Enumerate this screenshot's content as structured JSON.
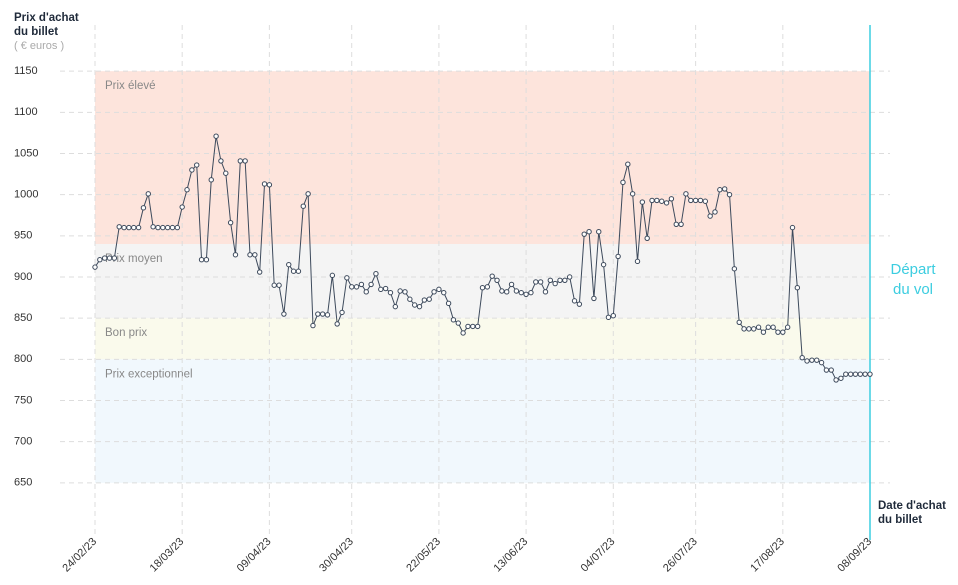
{
  "chart_data": {
    "type": "line",
    "y_axis_title": "Prix d'achat du billet",
    "y_axis_unit": "( € euros )",
    "x_axis_title": "Date d'achat du billet",
    "annotation": [
      "Départ",
      "du vol"
    ],
    "line_color": "#3d4a5c",
    "annotation_color": "#3ccde0",
    "grid": true,
    "bands": [
      {
        "label": "Prix élevé",
        "from": 940,
        "to": 1150,
        "color": "#fde4dc"
      },
      {
        "label": "Prix moyen",
        "from": 850,
        "to": 940,
        "color": "#f4f4f4"
      },
      {
        "label": "Bon prix",
        "from": 800,
        "to": 850,
        "color": "#fafaec"
      },
      {
        "label": "Prix exceptionnel",
        "from": 650,
        "to": 800,
        "color": "#f1f8fd"
      }
    ],
    "values": [
      912,
      921,
      923,
      923,
      923,
      961,
      960,
      960,
      960,
      960,
      984,
      1001,
      961,
      960,
      960,
      960,
      960,
      960,
      985,
      1006,
      1030,
      1036,
      921,
      921,
      1018,
      1071,
      1041,
      1026,
      966,
      927,
      1041,
      1041,
      927,
      927,
      906,
      1013,
      1012,
      890,
      890,
      855,
      915,
      907,
      907,
      986,
      1001,
      841,
      855,
      855,
      854,
      902,
      843,
      857,
      899,
      888,
      888,
      891,
      882,
      891,
      904,
      885,
      886,
      881,
      864,
      883,
      882,
      873,
      866,
      864,
      872,
      873,
      882,
      885,
      881,
      868,
      848,
      844,
      832,
      840,
      840,
      840,
      887,
      888,
      901,
      896,
      883,
      882,
      891,
      883,
      881,
      879,
      881,
      894,
      894,
      882,
      896,
      892,
      896,
      896,
      900,
      871,
      867,
      952,
      955,
      874,
      955,
      915,
      851,
      853,
      925,
      1015,
      1037,
      1001,
      919,
      991,
      947,
      993,
      993,
      992,
      990,
      995,
      964,
      964,
      1001,
      993,
      993,
      993,
      992,
      974,
      979,
      1006,
      1007,
      1000,
      910,
      845,
      837,
      837,
      837,
      839,
      833,
      839,
      839,
      833,
      833,
      839,
      960,
      887,
      802,
      798,
      799,
      799,
      796,
      787,
      787,
      775,
      777,
      782,
      782,
      782,
      782,
      782,
      782
    ],
    "xlim": [
      0,
      160
    ],
    "xticks": [
      {
        "value": 0,
        "label": "24/02/23"
      },
      {
        "value": 18,
        "label": "18/03/23"
      },
      {
        "value": 36,
        "label": "09/04/23"
      },
      {
        "value": 53,
        "label": "30/04/23"
      },
      {
        "value": 71,
        "label": "22/05/23"
      },
      {
        "value": 89,
        "label": "13/06/23"
      },
      {
        "value": 107,
        "label": "04/07/23"
      },
      {
        "value": 124,
        "label": "26/07/23"
      },
      {
        "value": 142,
        "label": "17/08/23"
      },
      {
        "value": 160,
        "label": "08/09/23"
      }
    ],
    "ylim": [
      600,
      1200
    ],
    "yticks": [
      650,
      700,
      750,
      800,
      850,
      900,
      950,
      1000,
      1050,
      1100,
      1150
    ]
  }
}
